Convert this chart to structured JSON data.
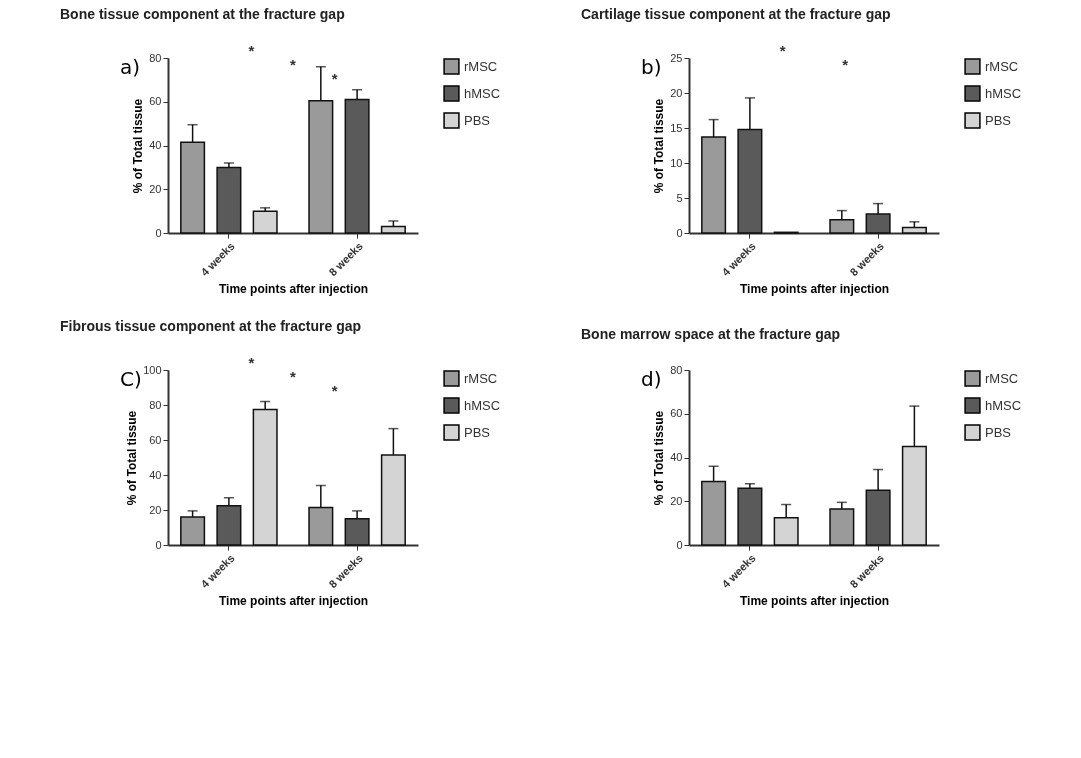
{
  "chart_data": [
    {
      "type": "bar",
      "title": "Bone tissue component at the fracture gap",
      "xlabel": "Time points after injection",
      "ylabel": "% of Total tissue",
      "categories": [
        "4 weeks",
        "8 weeks"
      ],
      "ylim": [
        0,
        80
      ],
      "yticks": [
        0,
        20,
        40,
        60,
        80
      ],
      "grid": false,
      "legend": "right",
      "series": [
        {
          "name": "rMSC",
          "color": "#9a9a9a",
          "values": [
            41.5,
            60.5
          ],
          "errors": [
            8,
            15.5
          ]
        },
        {
          "name": "hMSC",
          "color": "#5a5a5a",
          "values": [
            30,
            61
          ],
          "errors": [
            2,
            4.5
          ]
        },
        {
          "name": "PBS",
          "color": "#d4d4d4",
          "values": [
            10,
            3
          ],
          "errors": [
            1.5,
            2.5
          ]
        }
      ],
      "annotations": [
        "a)",
        "*",
        "*",
        "*"
      ]
    },
    {
      "type": "bar",
      "title": "Cartilage tissue component at the fracture gap",
      "xlabel": "Time points after injection",
      "ylabel": "% of Total tissue",
      "categories": [
        "4 weeks",
        "8 weeks"
      ],
      "ylim": [
        0,
        25
      ],
      "yticks": [
        0,
        5,
        10,
        15,
        20,
        25
      ],
      "grid": false,
      "legend": "right",
      "series": [
        {
          "name": "rMSC",
          "color": "#9a9a9a",
          "values": [
            13.7,
            1.9
          ],
          "errors": [
            2.5,
            1.3
          ]
        },
        {
          "name": "hMSC",
          "color": "#5a5a5a",
          "values": [
            14.8,
            2.7
          ],
          "errors": [
            4.5,
            1.5
          ]
        },
        {
          "name": "PBS",
          "color": "#d4d4d4",
          "values": [
            0.1,
            0.8
          ],
          "errors": [
            null,
            0.8
          ]
        }
      ],
      "annotations": [
        "b)",
        "*",
        "*"
      ]
    },
    {
      "type": "bar",
      "title": "Fibrous tissue component at the fracture gap",
      "xlabel": "Time points after injection",
      "ylabel": "% of Total tissue",
      "categories": [
        "4 weeks",
        "8 weeks"
      ],
      "ylim": [
        0,
        100
      ],
      "yticks": [
        0,
        20,
        40,
        60,
        80,
        100
      ],
      "grid": false,
      "legend": "right",
      "series": [
        {
          "name": "rMSC",
          "color": "#9a9a9a",
          "values": [
            16,
            21.5
          ],
          "errors": [
            3.5,
            12.5
          ]
        },
        {
          "name": "hMSC",
          "color": "#5a5a5a",
          "values": [
            22.5,
            15
          ],
          "errors": [
            4.5,
            4.5
          ]
        },
        {
          "name": "PBS",
          "color": "#d4d4d4",
          "values": [
            77.5,
            51.5
          ],
          "errors": [
            4.5,
            15
          ]
        }
      ],
      "annotations": [
        "C)",
        "*",
        "*",
        "*"
      ]
    },
    {
      "type": "bar",
      "title": "Bone marrow space at the fracture gap",
      "xlabel": "Time points after injection",
      "ylabel": "% of Total tissue",
      "categories": [
        "4 weeks",
        "8 weeks"
      ],
      "ylim": [
        0,
        80
      ],
      "yticks": [
        0,
        20,
        40,
        60,
        80
      ],
      "grid": false,
      "legend": "right",
      "series": [
        {
          "name": "rMSC",
          "color": "#9a9a9a",
          "values": [
            29,
            16.5
          ],
          "errors": [
            7,
            3
          ]
        },
        {
          "name": "hMSC",
          "color": "#5a5a5a",
          "values": [
            26,
            25
          ],
          "errors": [
            2,
            9.5
          ]
        },
        {
          "name": "PBS",
          "color": "#d4d4d4",
          "values": [
            12.5,
            45
          ],
          "errors": [
            6,
            18.5
          ]
        }
      ],
      "annotations": [
        "d)"
      ]
    }
  ]
}
